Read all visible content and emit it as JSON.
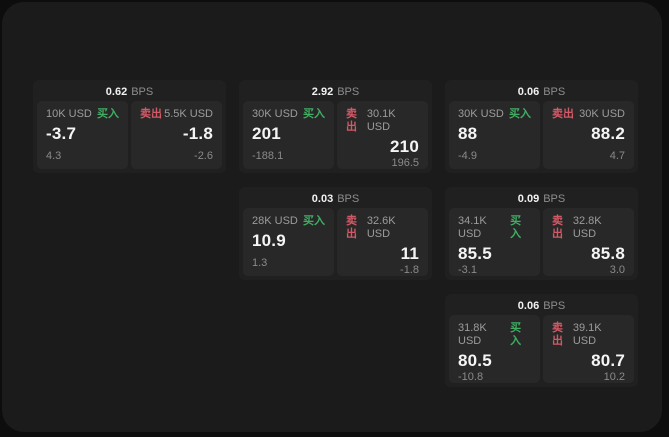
{
  "colors": {
    "buy_green": "#3fae63",
    "sell_red": "#d25966",
    "panel_bg": "#1b1b1b",
    "card_bg": "#202020",
    "tile_bg": "#282828"
  },
  "labels": {
    "bps": "BPS",
    "buy": "买入",
    "sell": "卖出"
  },
  "cards": [
    {
      "bps": "0.62",
      "col": 1,
      "row": 1,
      "left": {
        "amount": "10K USD",
        "price": "-3.7",
        "delta": "4.3"
      },
      "right": {
        "amount": "5.5K USD",
        "price": "-1.8",
        "delta": "-2.6"
      }
    },
    {
      "bps": "2.92",
      "col": 2,
      "row": 1,
      "left": {
        "amount": "30K USD",
        "price": "201",
        "delta": "-188.1"
      },
      "right": {
        "amount": "30.1K USD",
        "price": "210",
        "delta": "196.5"
      }
    },
    {
      "bps": "0.06",
      "col": 3,
      "row": 1,
      "left": {
        "amount": "30K USD",
        "price": "88",
        "delta": "-4.9"
      },
      "right": {
        "amount": "30K USD",
        "price": "88.2",
        "delta": "4.7"
      }
    },
    {
      "bps": "0.03",
      "col": 2,
      "row": 2,
      "left": {
        "amount": "28K USD",
        "price": "10.9",
        "delta": "1.3"
      },
      "right": {
        "amount": "32.6K USD",
        "price": "11",
        "delta": "-1.8"
      }
    },
    {
      "bps": "0.09",
      "col": 3,
      "row": 2,
      "left": {
        "amount": "34.1K USD",
        "price": "85.5",
        "delta": "-3.1"
      },
      "right": {
        "amount": "32.8K USD",
        "price": "85.8",
        "delta": "3.0"
      }
    },
    {
      "bps": "0.06",
      "col": 3,
      "row": 3,
      "left": {
        "amount": "31.8K USD",
        "price": "80.5",
        "delta": "-10.8"
      },
      "right": {
        "amount": "39.1K USD",
        "price": "80.7",
        "delta": "10.2"
      }
    }
  ]
}
